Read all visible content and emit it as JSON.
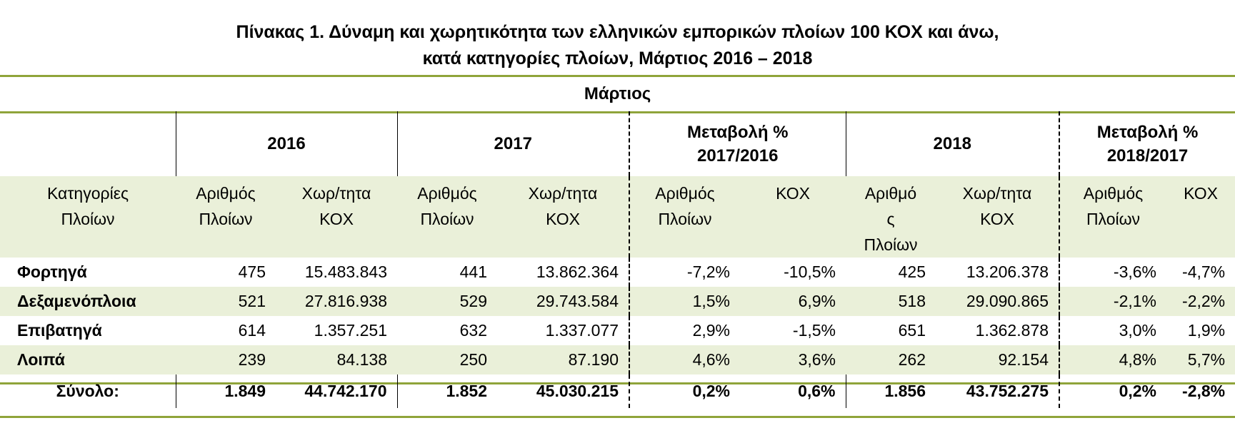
{
  "title": {
    "line1": "Πίνακας 1. Δύναμη και χωρητικότητα των ελληνικών εμπορικών πλοίων 100 ΚΟΧ και  άνω,",
    "line2": "κατά κατηγορίες πλοίων, Μάρτιος  2016 – 2018"
  },
  "table": {
    "month": "Μάρτιος",
    "year_headers": [
      "2016",
      "2017",
      "Μεταβολή %\n2017/2016",
      "2018",
      "Μεταβολή %\n2018/2017"
    ],
    "category_header": "Κατηγορίες\nΠλοίων",
    "sub_headers": [
      "Αριθμός\nΠλοίων",
      "Χωρ/τητα\nΚΟΧ",
      "Αριθμός\nΠλοίων",
      "Χωρ/τητα\nΚΟΧ",
      "Αριθμός\nΠλοίων",
      "ΚΟΧ",
      "Αριθμό\nς\nΠλοίων",
      "Χωρ/τητα\nΚΟΧ",
      "Αριθμός\nΠλοίων",
      "ΚΟΧ"
    ],
    "rows": [
      {
        "category": "Φορτηγά",
        "values": [
          "475",
          "15.483.843",
          "441",
          "13.862.364",
          "-7,2%",
          "-10,5%",
          "425",
          "13.206.378",
          "-3,6%",
          "-4,7%"
        ]
      },
      {
        "category": "Δεξαμενόπλοια",
        "values": [
          "521",
          "27.816.938",
          "529",
          "29.743.584",
          "1,5%",
          "6,9%",
          "518",
          "29.090.865",
          "-2,1%",
          "-2,2%"
        ]
      },
      {
        "category": "Επιβατηγά",
        "values": [
          "614",
          "1.357.251",
          "632",
          "1.337.077",
          "2,9%",
          "-1,5%",
          "651",
          "1.362.878",
          "3,0%",
          "1,9%"
        ]
      },
      {
        "category": "Λοιπά",
        "values": [
          "239",
          "84.138",
          "250",
          "87.190",
          "4,6%",
          "3,6%",
          "262",
          "92.154",
          "4,8%",
          "5,7%"
        ]
      }
    ],
    "total": {
      "category": "Σύνολο:",
      "values": [
        "1.849",
        "44.742.170",
        "1.852",
        "45.030.215",
        "0,2%",
        "0,6%",
        "1.856",
        "43.752.275",
        "0,2%",
        "-2,8%"
      ]
    }
  },
  "colors": {
    "rule": "#8fa43a",
    "shade": "#eaf0d9"
  }
}
